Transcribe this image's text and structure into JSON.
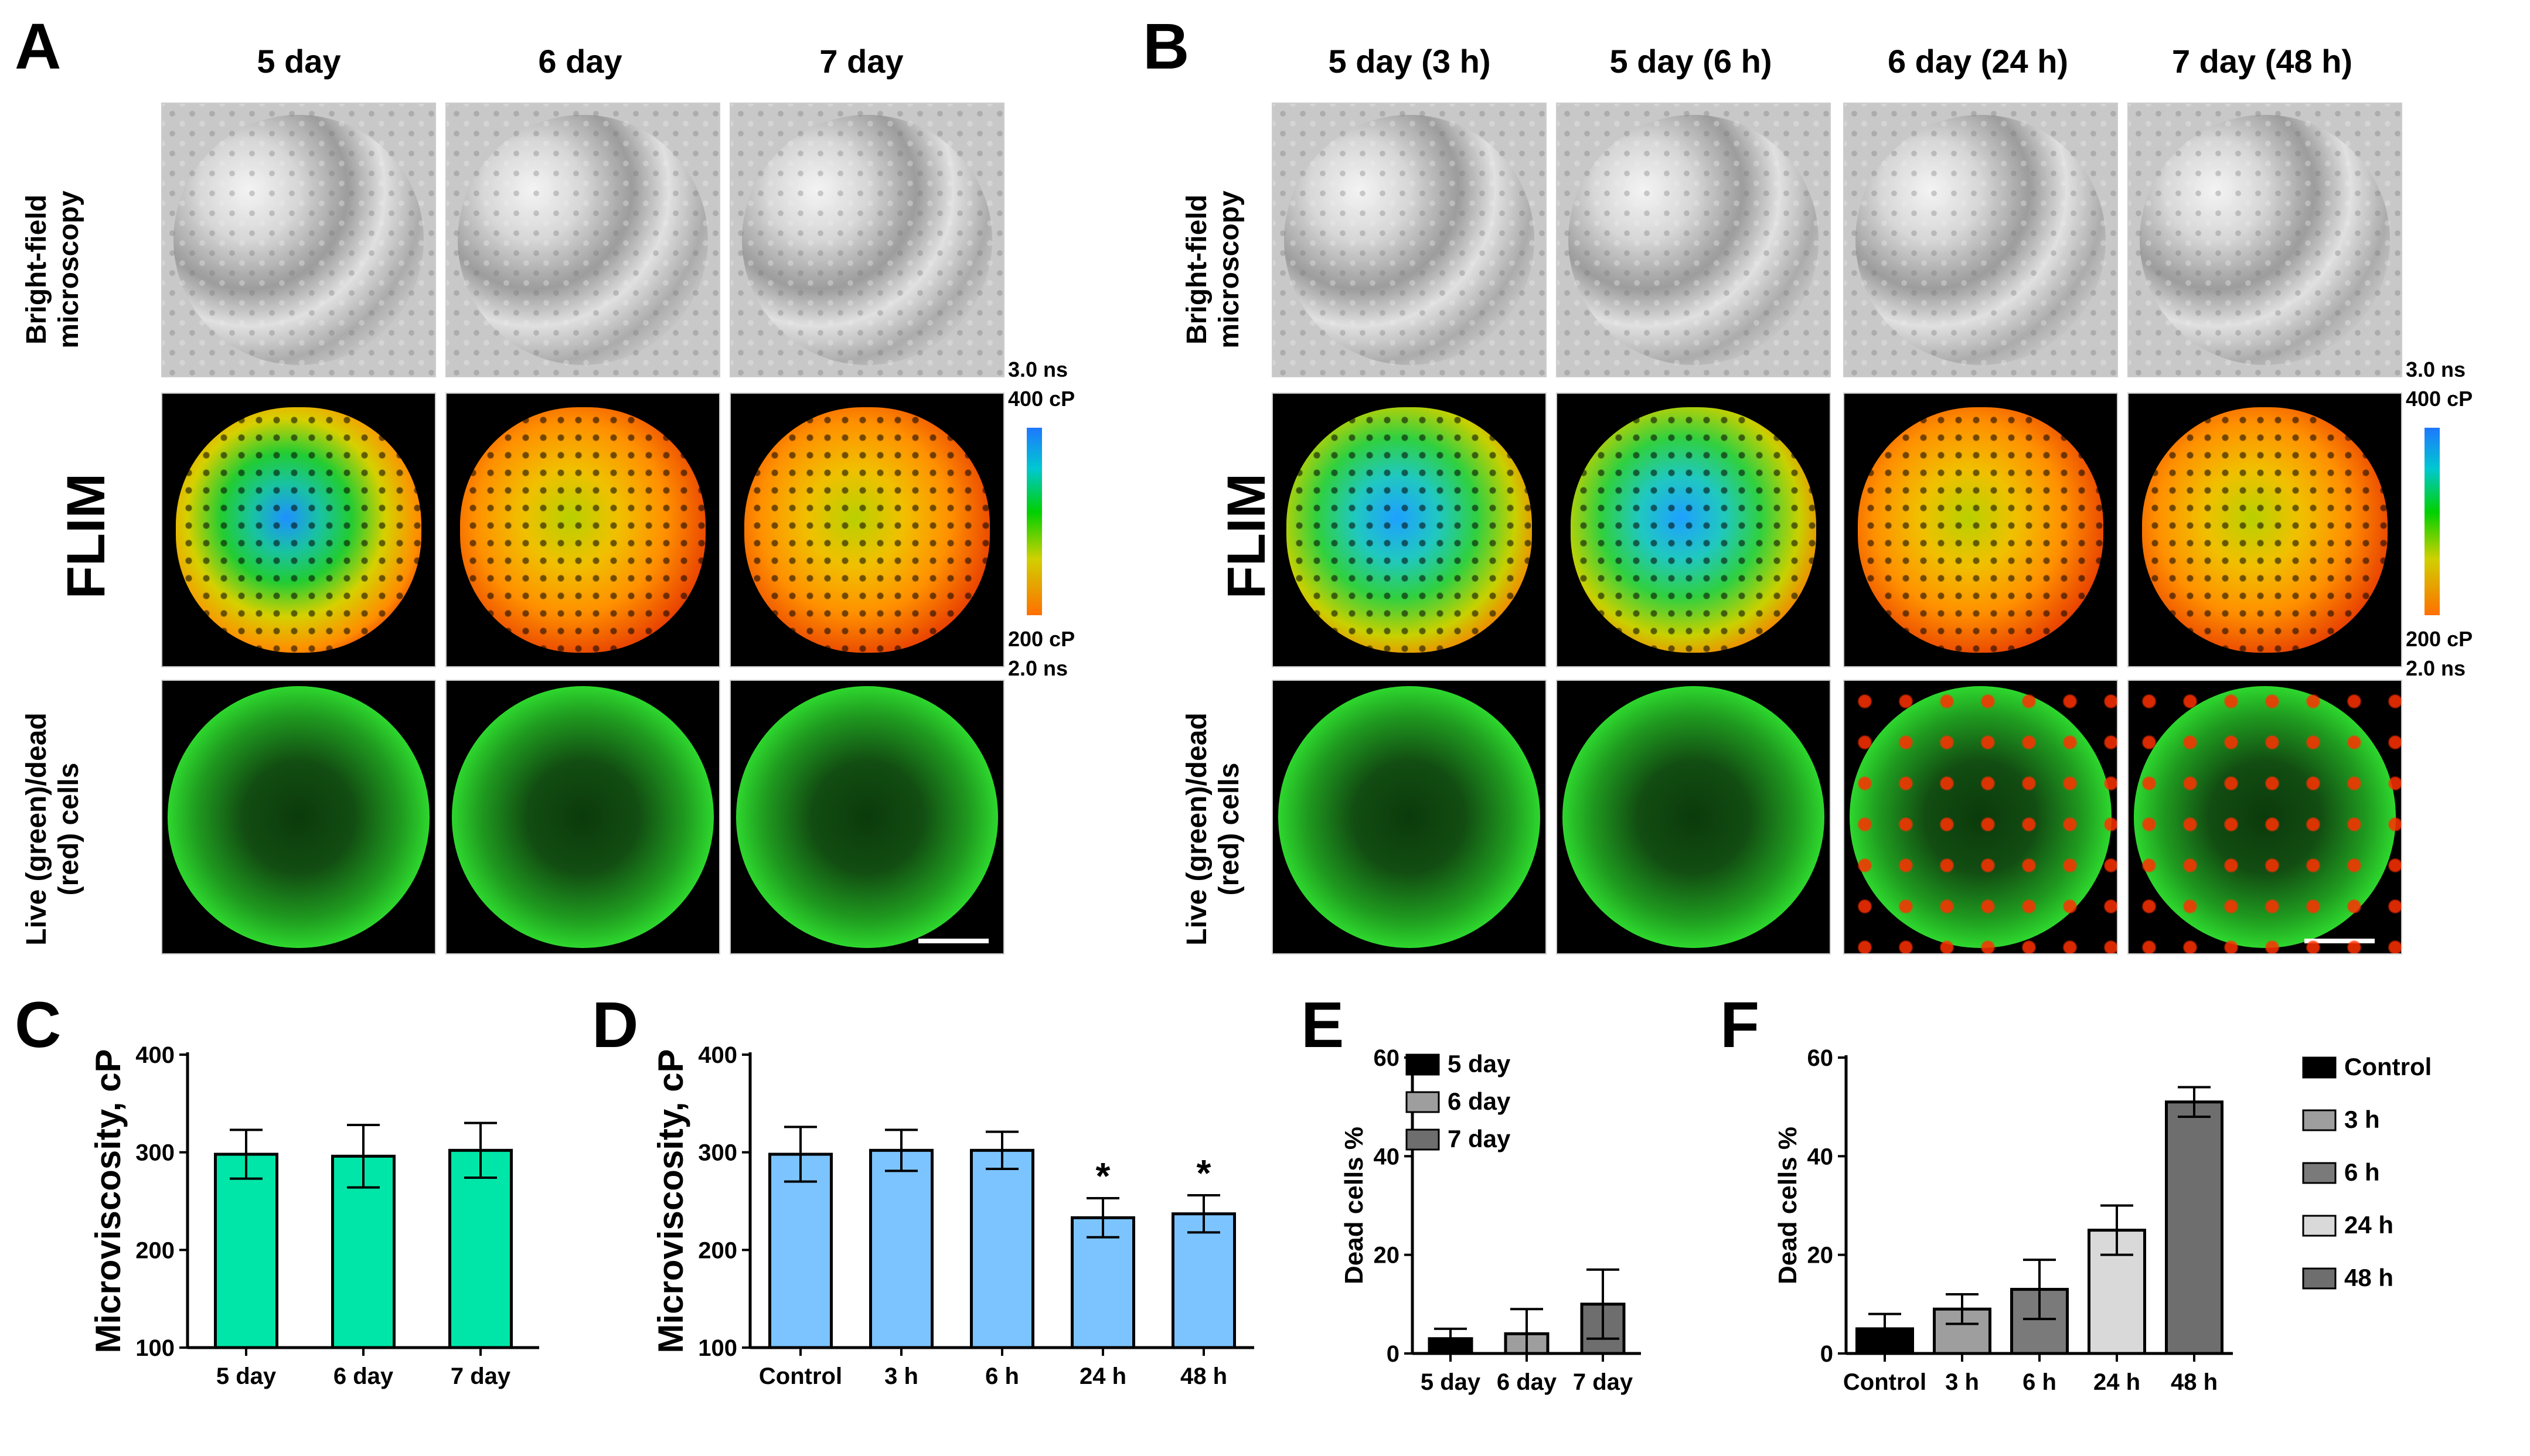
{
  "panelA": {
    "letter": "A",
    "columns": [
      "5 day",
      "6 day",
      "7 day"
    ],
    "rows": {
      "brightfield": [
        "Bright-field",
        "microscopy"
      ],
      "flim": "FLIM",
      "live": [
        "Live (green)/dead",
        "(red) cells"
      ]
    },
    "colorbar": {
      "top_time": "3.0 ns",
      "top_visc": "400 cP",
      "bottom_visc": "200 cP",
      "bottom_time": "2.0 ns"
    }
  },
  "panelB": {
    "letter": "B",
    "columns": [
      "5 day (3 h)",
      "5 day (6 h)",
      "6 day (24 h)",
      "7 day (48 h)"
    ],
    "rows": {
      "brightfield": [
        "Bright-field",
        "microscopy"
      ],
      "flim": "FLIM",
      "live": [
        "Live (green)/dead",
        "(red) cells"
      ]
    },
    "colorbar": {
      "top_time": "3.0 ns",
      "top_visc": "400 cP",
      "bottom_visc": "200 cP",
      "bottom_time": "2.0 ns"
    }
  },
  "chart_data": [
    {
      "panel": "C",
      "type": "bar",
      "ylabel": "Microviscosity, cP",
      "ylim": [
        100,
        400
      ],
      "yticks": [
        100,
        200,
        300,
        400
      ],
      "categories": [
        "5 day",
        "6 day",
        "7 day"
      ],
      "values": [
        298,
        296,
        302
      ],
      "errors": [
        25,
        32,
        28
      ],
      "color": "#00e6a8",
      "significance": [
        "",
        "",
        ""
      ]
    },
    {
      "panel": "D",
      "type": "bar",
      "ylabel": "Microviscosity, cP",
      "ylim": [
        100,
        400
      ],
      "yticks": [
        100,
        200,
        300,
        400
      ],
      "categories": [
        "Control",
        "3 h",
        "6 h",
        "24 h",
        "48 h"
      ],
      "values": [
        298,
        302,
        302,
        233,
        237
      ],
      "errors": [
        28,
        21,
        19,
        20,
        19
      ],
      "color": "#7cc4ff",
      "significance": [
        "",
        "",
        "",
        "*",
        "*"
      ]
    },
    {
      "panel": "E",
      "type": "bar",
      "ylabel": "Dead cells %",
      "ylim": [
        0,
        60
      ],
      "yticks": [
        0,
        20,
        40,
        60
      ],
      "categories": [
        "5 day",
        "6 day",
        "7 day"
      ],
      "values": [
        3,
        4,
        10
      ],
      "errors": [
        2,
        5,
        7
      ],
      "colors": [
        "#000000",
        "#9e9e9e",
        "#6e6e6e"
      ],
      "legend": [
        "5 day",
        "6 day",
        "7 day"
      ]
    },
    {
      "panel": "F",
      "type": "bar",
      "ylabel": "Dead cells %",
      "ylim": [
        0,
        60
      ],
      "yticks": [
        0,
        20,
        40,
        60
      ],
      "categories": [
        "Control",
        "3 h",
        "6 h",
        "24 h",
        "48 h"
      ],
      "values": [
        5,
        9,
        13,
        25,
        51
      ],
      "errors": [
        3,
        3,
        6,
        5,
        3
      ],
      "colors": [
        "#000000",
        "#9e9e9e",
        "#7a7a7a",
        "#d9d9d9",
        "#6e6e6e"
      ],
      "legend": [
        "Control",
        "3 h",
        "6 h",
        "24 h",
        "48 h"
      ]
    }
  ]
}
